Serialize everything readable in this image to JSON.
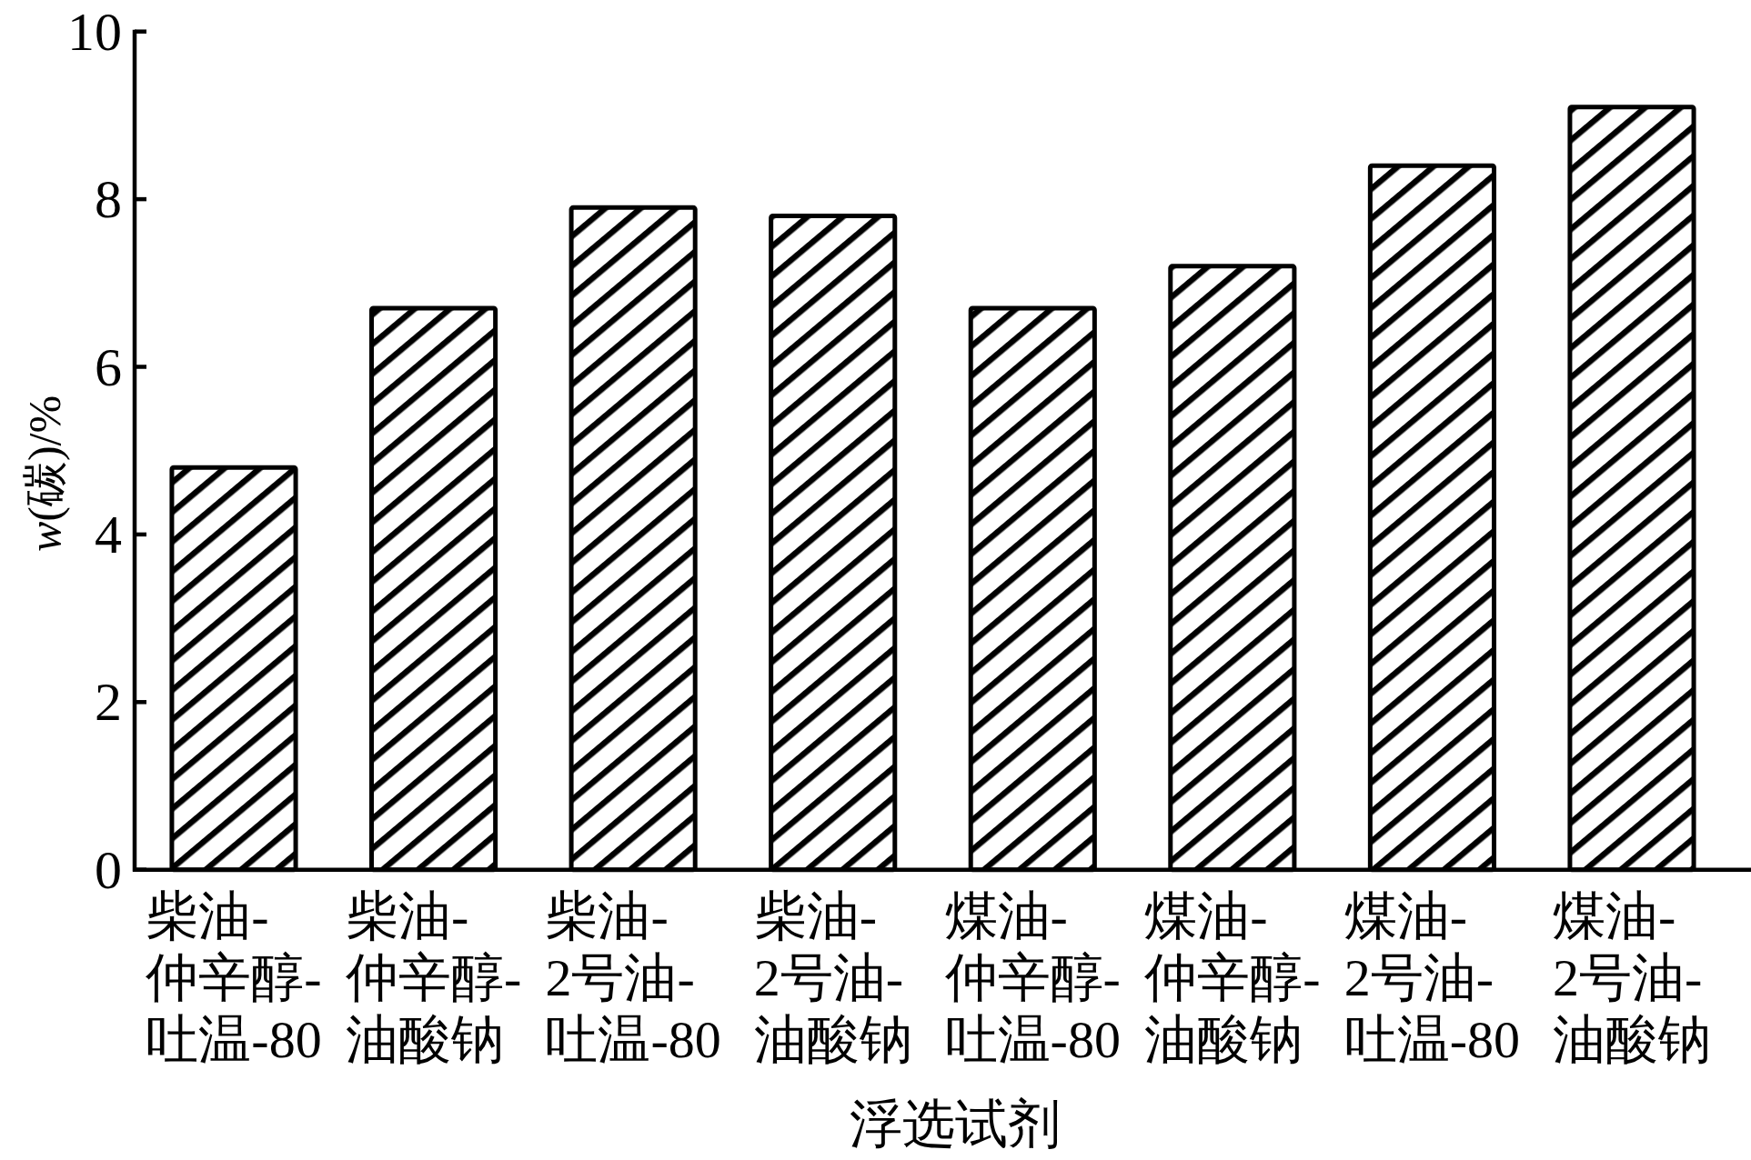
{
  "chart_data": {
    "type": "bar",
    "xlabel": "浮选试剂",
    "ylabel": "w(碳)/%",
    "categories": [
      "柴油-\n仲辛醇-\n吐温-80",
      "柴油-\n仲辛醇-\n油酸钠",
      "柴油-\n2号油-\n吐温-80",
      "柴油-\n2号油-\n油酸钠",
      "煤油-\n仲辛醇-\n吐温-80",
      "煤油-\n仲辛醇-\n油酸钠",
      "煤油-\n2号油-\n吐温-80",
      "煤油-\n2号油-\n油酸钠"
    ],
    "values": [
      4.8,
      6.7,
      7.9,
      7.8,
      6.7,
      7.2,
      8.4,
      9.1
    ],
    "color": "#000000",
    "ylim": [
      0,
      10
    ],
    "yticks": [
      0,
      2,
      4,
      6,
      8,
      10
    ]
  }
}
